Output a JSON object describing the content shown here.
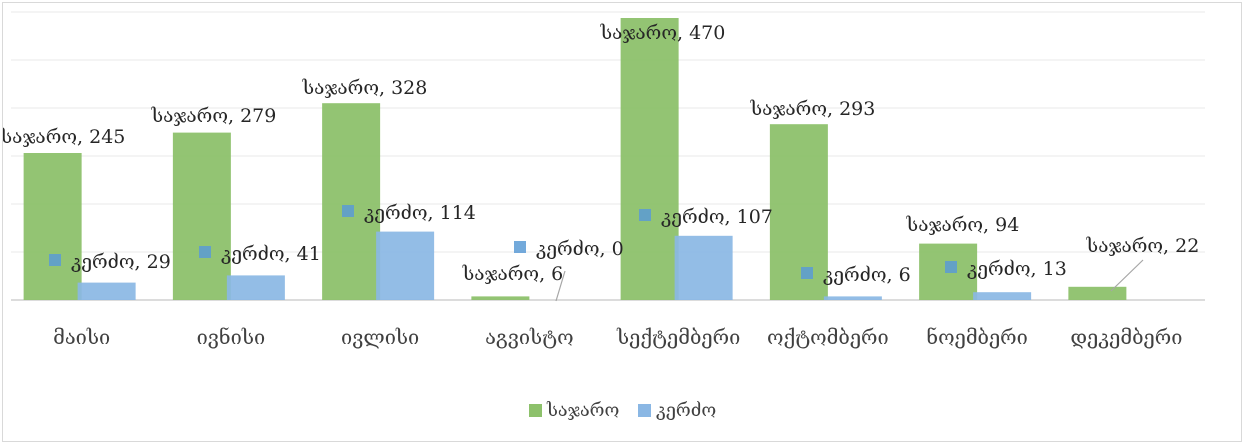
{
  "chart_data": {
    "type": "bar",
    "title": "",
    "xlabel": "",
    "ylabel": "",
    "ylim": [
      0,
      480
    ],
    "grid": true,
    "legend_position": "bottom",
    "categories": [
      "მაისი",
      "ივნისი",
      "ივლისი",
      "აგვისტო",
      "სექტემბერი",
      "ოქტომბერი",
      "ნოემბერი",
      "დეკემბერი"
    ],
    "series": [
      {
        "name": "საჯარო",
        "color": "#8dc16b",
        "values": [
          245,
          279,
          328,
          6,
          470,
          293,
          94,
          22
        ],
        "labels": [
          "საჯარო, 245",
          "საჯარო, 279",
          "საჯარო, 328",
          "საჯარო, 6",
          "საჯარო, 470",
          "საჯარო, 293",
          "საჯარო, 94",
          "საჯარო, 22"
        ]
      },
      {
        "name": "კერძო",
        "color": "#8ab7e4",
        "values": [
          29,
          41,
          114,
          0,
          107,
          6,
          13,
          0
        ],
        "labels": [
          "კერძო, 29",
          "კერძო, 41",
          "კერძო, 114",
          "კერძო, 0",
          "კერძო, 107",
          "კერძო, 6",
          "კერძო, 13",
          null
        ]
      }
    ]
  }
}
